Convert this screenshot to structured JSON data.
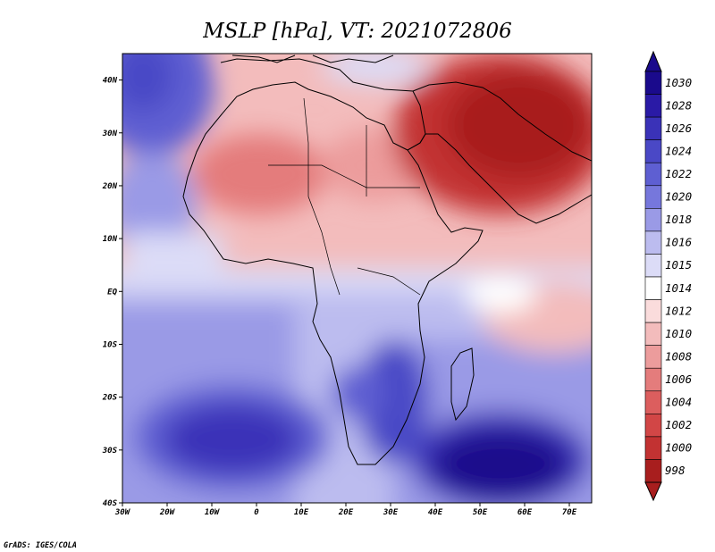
{
  "title": "MSLP [hPa], VT: 2021072806",
  "credit": "GrADS: IGES/COLA",
  "map": {
    "lon_range": [
      -30,
      75
    ],
    "lat_range": [
      -40,
      45
    ],
    "lon_ticks": [
      {
        "value": -30,
        "label": "30W"
      },
      {
        "value": -20,
        "label": "20W"
      },
      {
        "value": -10,
        "label": "10W"
      },
      {
        "value": 0,
        "label": "0"
      },
      {
        "value": 10,
        "label": "10E"
      },
      {
        "value": 20,
        "label": "20E"
      },
      {
        "value": 30,
        "label": "30E"
      },
      {
        "value": 40,
        "label": "40E"
      },
      {
        "value": 50,
        "label": "50E"
      },
      {
        "value": 60,
        "label": "60E"
      },
      {
        "value": 70,
        "label": "70E"
      }
    ],
    "lat_ticks": [
      {
        "value": 40,
        "label": "40N"
      },
      {
        "value": 30,
        "label": "30N"
      },
      {
        "value": 20,
        "label": "20N"
      },
      {
        "value": 10,
        "label": "10N"
      },
      {
        "value": 0,
        "label": "EQ"
      },
      {
        "value": -10,
        "label": "10S"
      },
      {
        "value": -20,
        "label": "20S"
      },
      {
        "value": -30,
        "label": "30S"
      },
      {
        "value": -40,
        "label": "40S"
      }
    ]
  },
  "colorbar": {
    "levels": [
      {
        "label": "1030",
        "color": "#1a0a8c"
      },
      {
        "label": "1028",
        "color": "#2a1aa6"
      },
      {
        "label": "1026",
        "color": "#3a32b8"
      },
      {
        "label": "1024",
        "color": "#4a48c6"
      },
      {
        "label": "1022",
        "color": "#5e5fd2"
      },
      {
        "label": "1020",
        "color": "#7677dc"
      },
      {
        "label": "1018",
        "color": "#9a9ae6"
      },
      {
        "label": "1016",
        "color": "#bcbcef"
      },
      {
        "label": "1015",
        "color": "#dcdcf7"
      },
      {
        "label": "1014",
        "color": "#ffffff"
      },
      {
        "label": "1012",
        "color": "#fadcdc"
      },
      {
        "label": "1010",
        "color": "#f3bcbc"
      },
      {
        "label": "1008",
        "color": "#ec9c9c"
      },
      {
        "label": "1006",
        "color": "#e47c7c"
      },
      {
        "label": "1004",
        "color": "#dc5e5e"
      },
      {
        "label": "1002",
        "color": "#d24646"
      },
      {
        "label": "1000",
        "color": "#c23232"
      },
      {
        "label": "998",
        "color": "#a81e1e"
      }
    ]
  },
  "colors": {
    "pressure_low": "#a81e1e",
    "pressure_high": "#1a0a8c",
    "neutral": "#ffffff"
  }
}
